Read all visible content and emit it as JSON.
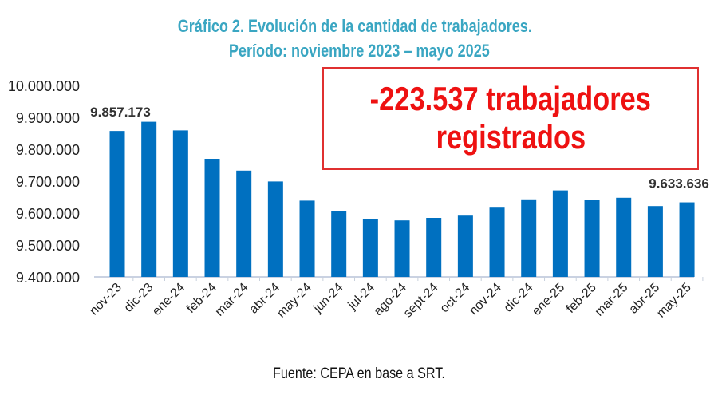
{
  "chart_data": {
    "type": "bar",
    "title": "Gráfico 2. Evolución de la cantidad de trabajadores.",
    "subtitle": "Período: noviembre 2023 – mayo 2025",
    "categories": [
      "nov-23",
      "dic-23",
      "ene-24",
      "feb-24",
      "mar-24",
      "abr-24",
      "may-24",
      "jun-24",
      "jul-24",
      "ago-24",
      "sept-24",
      "oct-24",
      "nov-24",
      "dic-24",
      "ene-25",
      "feb-25",
      "mar-25",
      "abr-25",
      "may-25"
    ],
    "values": [
      9857173,
      9886000,
      9859000,
      9770000,
      9733000,
      9699000,
      9639000,
      9607000,
      9580000,
      9577000,
      9585000,
      9592000,
      9617000,
      9643000,
      9671000,
      9640000,
      9648000,
      9622000,
      9633636
    ],
    "data_labels": [
      {
        "category": "nov-23",
        "text": "9.857.173"
      },
      {
        "category": "may-25",
        "text": "9.633.636"
      }
    ],
    "yticks": [
      "9.400.000",
      "9.500.000",
      "9.600.000",
      "9.700.000",
      "9.800.000",
      "9.900.000",
      "10.000.000"
    ],
    "ylim": [
      9400000,
      10000000
    ],
    "xlabel": "",
    "ylabel": "",
    "grid": false,
    "bar_color": "#0070c0",
    "title_color": "#3aa6c2",
    "annotation": {
      "line1": "-223.537 trabajadores",
      "line2": "registrados",
      "color": "#ee1111"
    }
  },
  "source": "Fuente: CEPA en base a SRT."
}
